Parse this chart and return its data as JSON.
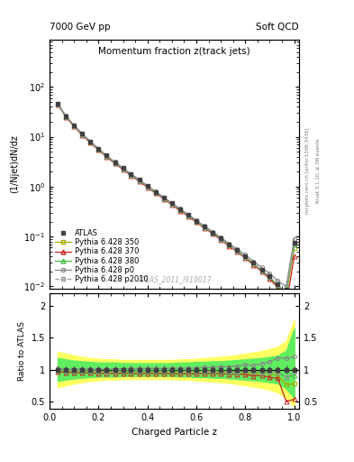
{
  "title_main": "Momentum fraction z(track jets)",
  "header_left": "7000 GeV pp",
  "header_right": "Soft QCD",
  "ylabel_main": "(1/Njet)dN/dz",
  "ylabel_ratio": "Ratio to ATLAS",
  "xlabel": "Charged Particle z",
  "watermark": "ATLAS_2011_I919017",
  "right_label": "mcplots.cern.ch [arXiv:1306.3436]    Rivet 3.1.10, ≥ 3M events",
  "ylim_main": [
    0.009,
    900
  ],
  "ylim_ratio": [
    0.38,
    2.2
  ],
  "x_values": [
    0.033,
    0.067,
    0.1,
    0.133,
    0.167,
    0.2,
    0.233,
    0.267,
    0.3,
    0.333,
    0.367,
    0.4,
    0.433,
    0.467,
    0.5,
    0.533,
    0.567,
    0.6,
    0.633,
    0.667,
    0.7,
    0.733,
    0.767,
    0.8,
    0.833,
    0.867,
    0.9,
    0.933,
    0.967,
    1.0
  ],
  "atlas_y": [
    46.0,
    26.0,
    17.0,
    11.5,
    8.0,
    5.8,
    4.2,
    3.1,
    2.35,
    1.78,
    1.36,
    1.03,
    0.79,
    0.605,
    0.462,
    0.354,
    0.271,
    0.207,
    0.158,
    0.121,
    0.092,
    0.07,
    0.053,
    0.04,
    0.03,
    0.022,
    0.016,
    0.011,
    0.0085,
    0.075
  ],
  "atlas_yerr": [
    2.5,
    1.4,
    0.9,
    0.6,
    0.4,
    0.3,
    0.2,
    0.15,
    0.12,
    0.09,
    0.07,
    0.05,
    0.04,
    0.03,
    0.023,
    0.018,
    0.014,
    0.01,
    0.008,
    0.006,
    0.005,
    0.004,
    0.003,
    0.002,
    0.0015,
    0.0011,
    0.0008,
    0.0006,
    0.0005,
    0.004
  ],
  "py350_y": [
    45.5,
    25.5,
    16.6,
    11.2,
    7.8,
    5.6,
    4.05,
    3.0,
    2.28,
    1.73,
    1.32,
    1.0,
    0.765,
    0.585,
    0.447,
    0.342,
    0.262,
    0.2,
    0.153,
    0.117,
    0.089,
    0.067,
    0.051,
    0.038,
    0.028,
    0.021,
    0.015,
    0.01,
    0.0065,
    0.058
  ],
  "py370_y": [
    44.5,
    24.8,
    16.1,
    10.9,
    7.55,
    5.45,
    3.93,
    2.91,
    2.21,
    1.67,
    1.27,
    0.966,
    0.738,
    0.566,
    0.432,
    0.33,
    0.253,
    0.193,
    0.148,
    0.113,
    0.086,
    0.065,
    0.049,
    0.037,
    0.027,
    0.02,
    0.014,
    0.0095,
    0.0042,
    0.04
  ],
  "py380_y": [
    45.8,
    25.6,
    16.7,
    11.3,
    7.85,
    5.65,
    4.08,
    3.02,
    2.3,
    1.74,
    1.33,
    1.01,
    0.772,
    0.591,
    0.451,
    0.345,
    0.264,
    0.202,
    0.154,
    0.118,
    0.09,
    0.068,
    0.051,
    0.039,
    0.029,
    0.021,
    0.0155,
    0.0105,
    0.0075,
    0.068
  ],
  "pyp0_y": [
    46.8,
    26.2,
    17.1,
    11.6,
    8.05,
    5.82,
    4.22,
    3.13,
    2.38,
    1.81,
    1.38,
    1.05,
    0.803,
    0.616,
    0.471,
    0.361,
    0.277,
    0.212,
    0.163,
    0.125,
    0.096,
    0.073,
    0.056,
    0.043,
    0.032,
    0.024,
    0.018,
    0.013,
    0.01,
    0.09
  ],
  "pyp2010_y": [
    45.8,
    25.6,
    16.7,
    11.3,
    7.85,
    5.65,
    4.08,
    3.02,
    2.3,
    1.74,
    1.33,
    1.01,
    0.772,
    0.591,
    0.451,
    0.345,
    0.264,
    0.202,
    0.154,
    0.118,
    0.09,
    0.068,
    0.051,
    0.039,
    0.029,
    0.021,
    0.0155,
    0.0105,
    0.0075,
    0.072
  ],
  "atlas_band_lo": [
    0.82,
    0.84,
    0.86,
    0.87,
    0.88,
    0.89,
    0.89,
    0.89,
    0.9,
    0.9,
    0.9,
    0.9,
    0.9,
    0.9,
    0.9,
    0.89,
    0.89,
    0.88,
    0.88,
    0.87,
    0.87,
    0.86,
    0.85,
    0.84,
    0.83,
    0.82,
    0.8,
    0.78,
    0.7,
    0.55
  ],
  "atlas_band_hi": [
    1.18,
    1.16,
    1.14,
    1.13,
    1.12,
    1.11,
    1.11,
    1.11,
    1.1,
    1.1,
    1.1,
    1.1,
    1.1,
    1.1,
    1.1,
    1.11,
    1.11,
    1.12,
    1.12,
    1.13,
    1.13,
    1.14,
    1.15,
    1.16,
    1.17,
    1.18,
    1.2,
    1.22,
    1.3,
    1.65
  ],
  "atlas_band_outer_lo": [
    0.72,
    0.75,
    0.78,
    0.8,
    0.82,
    0.83,
    0.84,
    0.84,
    0.85,
    0.85,
    0.85,
    0.85,
    0.85,
    0.85,
    0.85,
    0.84,
    0.84,
    0.83,
    0.82,
    0.81,
    0.8,
    0.79,
    0.77,
    0.75,
    0.73,
    0.71,
    0.68,
    0.64,
    0.55,
    0.42
  ],
  "atlas_band_outer_hi": [
    1.28,
    1.25,
    1.22,
    1.2,
    1.18,
    1.17,
    1.16,
    1.16,
    1.15,
    1.15,
    1.15,
    1.15,
    1.15,
    1.15,
    1.15,
    1.16,
    1.16,
    1.17,
    1.18,
    1.19,
    1.2,
    1.21,
    1.23,
    1.25,
    1.27,
    1.29,
    1.32,
    1.36,
    1.45,
    1.78
  ],
  "color_atlas": "#404040",
  "color_350": "#aaaa00",
  "color_370": "#cc2222",
  "color_380": "#44bb44",
  "color_p0": "#888888",
  "color_p2010": "#999999",
  "bg_color": "#ffffff",
  "band_yellow": "#ffff60",
  "band_green": "#60ee60"
}
